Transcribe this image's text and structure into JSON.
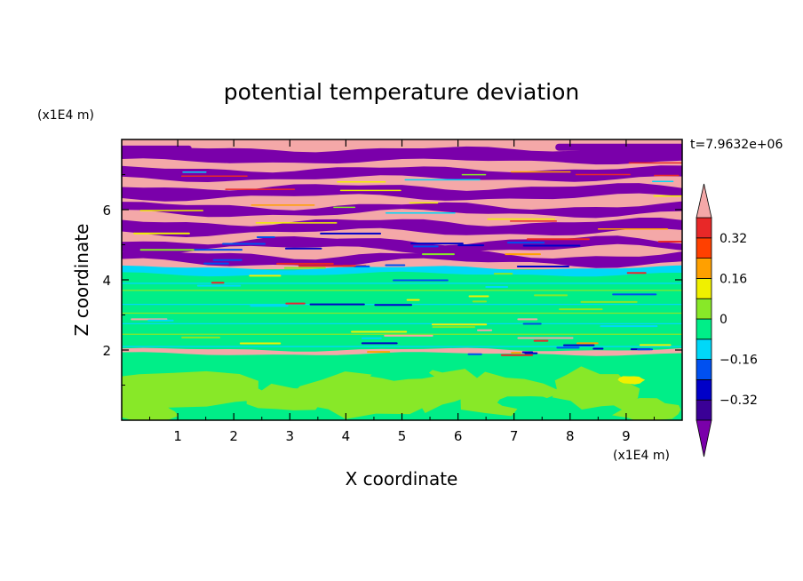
{
  "chart_data": {
    "type": "heatmap",
    "title": "potential temperature deviation",
    "xlabel": "X coordinate",
    "ylabel": "Z coordinate",
    "x_unit": "(x1E4 m)",
    "y_unit": "(x1E4 m)",
    "time_label": "t=7.9632e+06",
    "xlim": [
      0,
      10
    ],
    "ylim": [
      0,
      8
    ],
    "x_ticks": [
      1,
      2,
      3,
      4,
      5,
      6,
      7,
      8,
      9
    ],
    "y_ticks": [
      2,
      4,
      6
    ],
    "colorbar": {
      "levels": [
        -0.4,
        -0.32,
        -0.24,
        -0.16,
        -0.08,
        0,
        0.08,
        0.16,
        0.24,
        0.32,
        0.4
      ],
      "labeled_levels": [
        "0.32",
        "0.16",
        "0",
        "−0.16",
        "−0.32"
      ],
      "labeled_values": [
        0.32,
        0.16,
        0,
        -0.16,
        -0.32
      ],
      "colors": [
        "#7a00aa",
        "#3a0096",
        "#0000c8",
        "#0050f0",
        "#00d8f8",
        "#00ee88",
        "#88e828",
        "#f0f000",
        "#ffa000",
        "#ff4000",
        "#e82828",
        "#f4a8a8"
      ],
      "extend": "both"
    }
  }
}
